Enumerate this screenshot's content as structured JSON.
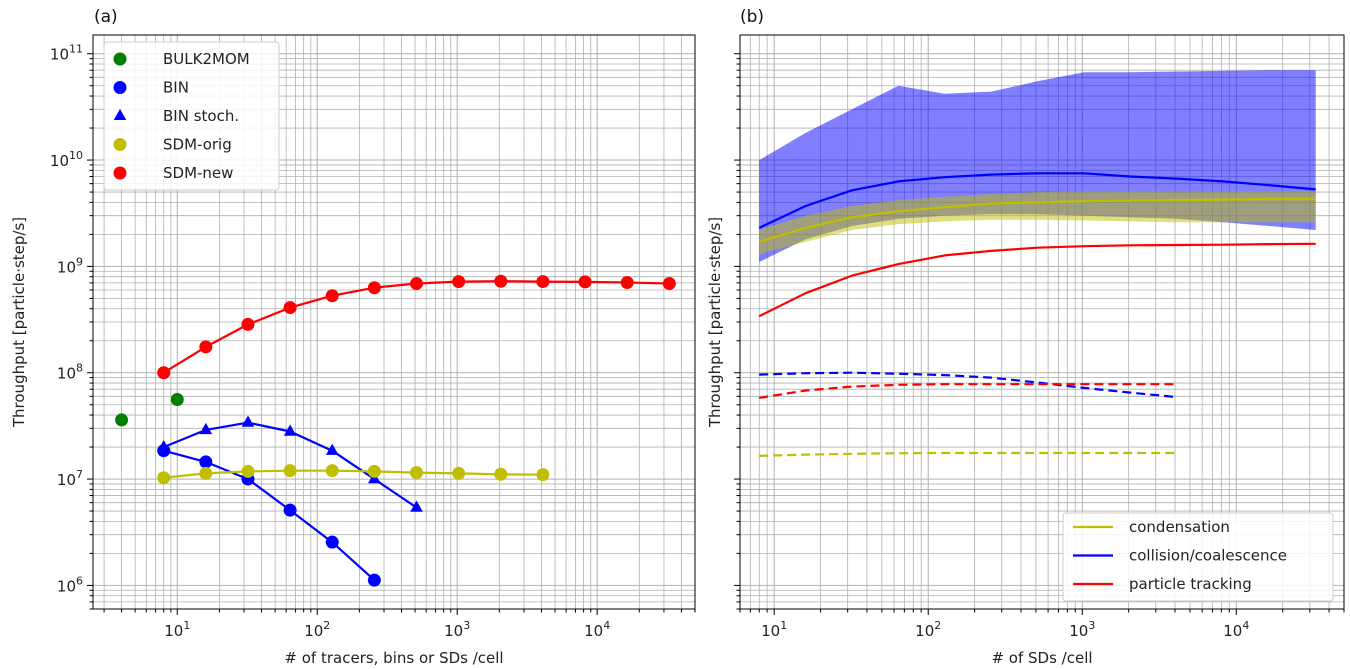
{
  "chart_data": [
    {
      "panel_label": "(a)",
      "type": "line",
      "xscale": "log",
      "yscale": "log",
      "xlim": [
        2.5,
        50000
      ],
      "ylim": [
        600000,
        150000000000
      ],
      "grid": "major and minor",
      "xlabel": "# of tracers, bins or SDs /cell",
      "ylabel": "Throughput [particle·step/s]",
      "x_ticks": [
        {
          "v": 10,
          "b": "10",
          "e": "1"
        },
        {
          "v": 100,
          "b": "10",
          "e": "2"
        },
        {
          "v": 1000,
          "b": "10",
          "e": "3"
        },
        {
          "v": 10000,
          "b": "10",
          "e": "4"
        }
      ],
      "y_ticks": [
        {
          "v": 1000000,
          "b": "10",
          "e": "6"
        },
        {
          "v": 10000000,
          "b": "10",
          "e": "7"
        },
        {
          "v": 100000000,
          "b": "10",
          "e": "8"
        },
        {
          "v": 1000000000,
          "b": "10",
          "e": "9"
        },
        {
          "v": 10000000000,
          "b": "10",
          "e": "10"
        },
        {
          "v": 100000000000,
          "b": "10",
          "e": "11"
        }
      ],
      "legend_position": "top-left",
      "series": [
        {
          "name": "BULK2MOM",
          "color": "#008000",
          "marker": "circle",
          "line": false,
          "x": [
            4,
            10
          ],
          "y": [
            36000000,
            56000000
          ]
        },
        {
          "name": "BIN",
          "color": "#0000ff",
          "marker": "circle",
          "line": true,
          "x": [
            8,
            16,
            32,
            64,
            128,
            256
          ],
          "y": [
            18500000,
            14500000,
            10000000,
            5100000,
            2550000,
            1120000
          ]
        },
        {
          "name": "BIN stoch.",
          "color": "#0000ff",
          "marker": "triangle",
          "line": true,
          "x": [
            8,
            16,
            32,
            64,
            128,
            256,
            512
          ],
          "y": [
            20000000,
            29000000,
            34000000,
            28000000,
            18500000,
            10000000,
            5400000
          ]
        },
        {
          "name": "SDM-orig",
          "color": "#bfbf00",
          "marker": "circle",
          "line": true,
          "x": [
            8,
            16,
            32,
            64,
            128,
            256,
            512,
            1024,
            2048,
            4096
          ],
          "y": [
            10300000,
            11300000,
            11800000,
            12000000,
            12000000,
            11800000,
            11500000,
            11300000,
            11100000,
            11000000
          ]
        },
        {
          "name": "SDM-new",
          "color": "#ff0000",
          "marker": "circle",
          "line": true,
          "x": [
            8,
            16,
            32,
            64,
            128,
            256,
            512,
            1024,
            2048,
            4096,
            8192,
            16384,
            32768
          ],
          "y": [
            100000000,
            175000000,
            285000000,
            410000000,
            530000000,
            630000000,
            690000000,
            720000000,
            725000000,
            720000000,
            715000000,
            705000000,
            690000000
          ]
        }
      ]
    },
    {
      "panel_label": "(b)",
      "type": "line",
      "xscale": "log",
      "yscale": "log",
      "xlim": [
        6,
        50000
      ],
      "ylim": [
        600000,
        150000000000
      ],
      "grid": "major and minor",
      "xlabel": "# of SDs /cell",
      "ylabel": "Throughput [particle·step/s]",
      "x_ticks": [
        {
          "v": 10,
          "b": "10",
          "e": "1"
        },
        {
          "v": 100,
          "b": "10",
          "e": "2"
        },
        {
          "v": 1000,
          "b": "10",
          "e": "3"
        },
        {
          "v": 10000,
          "b": "10",
          "e": "4"
        }
      ],
      "legend_position": "bottom-right",
      "legend": [
        {
          "name": "condensation",
          "color": "#bfbf00"
        },
        {
          "name": "collision/coalescence",
          "color": "#0000ff"
        },
        {
          "name": "particle tracking",
          "color": "#ff0000"
        }
      ],
      "bands": [
        {
          "color": "#0000ff",
          "x": [
            8,
            16,
            32,
            64,
            128,
            256,
            512,
            1024,
            2048,
            4096,
            8192,
            16384,
            32768
          ],
          "lower": [
            1100000000,
            1800000000,
            2400000000,
            2800000000,
            3000000000,
            3100000000,
            3100000000,
            3000000000,
            2900000000,
            2800000000,
            2600000000,
            2400000000,
            2200000000
          ],
          "upper": [
            10000000000,
            18000000000,
            30000000000,
            50000000000,
            42000000000,
            44000000000,
            55000000000,
            67000000000,
            67000000000,
            68000000000,
            69000000000,
            70000000000,
            70000000000
          ]
        },
        {
          "color": "#bfbf00",
          "x": [
            8,
            16,
            32,
            64,
            128,
            256,
            512,
            1024,
            2048,
            4096,
            8192,
            16384,
            32768
          ],
          "lower": [
            1300000000,
            1700000000,
            2200000000,
            2500000000,
            2650000000,
            2750000000,
            2750000000,
            2700000000,
            2650000000,
            2600000000,
            2600000000,
            2600000000,
            2600000000
          ],
          "upper": [
            2200000000,
            3000000000,
            3700000000,
            4200000000,
            4500000000,
            4800000000,
            5000000000,
            5100000000,
            5100000000,
            5100000000,
            5100000000,
            5100000000,
            5100000000
          ]
        }
      ],
      "series": [
        {
          "color": "#0000ff",
          "style": "solid",
          "x": [
            8,
            16,
            32,
            64,
            128,
            256,
            512,
            1024,
            2048,
            4096,
            8192,
            16384,
            32768
          ],
          "y": [
            2300000000,
            3700000000,
            5200000000,
            6300000000,
            6900000000,
            7300000000,
            7500000000,
            7500000000,
            7000000000,
            6700000000,
            6300000000,
            5800000000,
            5300000000
          ]
        },
        {
          "color": "#bfbf00",
          "style": "solid",
          "x": [
            8,
            16,
            32,
            64,
            128,
            256,
            512,
            1024,
            2048,
            4096,
            8192,
            16384,
            32768
          ],
          "y": [
            1700000000,
            2300000000,
            2900000000,
            3300000000,
            3600000000,
            3900000000,
            4000000000,
            4100000000,
            4150000000,
            4200000000,
            4250000000,
            4300000000,
            4300000000
          ]
        },
        {
          "color": "#ff0000",
          "style": "solid",
          "x": [
            8,
            16,
            32,
            64,
            128,
            256,
            512,
            1024,
            2048,
            4096,
            8192,
            16384,
            32768
          ],
          "y": [
            340000000,
            560000000,
            820000000,
            1050000000,
            1270000000,
            1400000000,
            1500000000,
            1550000000,
            1580000000,
            1590000000,
            1600000000,
            1620000000,
            1630000000
          ]
        },
        {
          "color": "#0000ff",
          "style": "dashed",
          "x": [
            8,
            16,
            32,
            64,
            128,
            256,
            512,
            1024,
            2048,
            4096
          ],
          "y": [
            96000000,
            99000000,
            100000000,
            98000000,
            95000000,
            90000000,
            81000000,
            72000000,
            65000000,
            59000000
          ]
        },
        {
          "color": "#ff0000",
          "style": "dashed",
          "x": [
            8,
            16,
            32,
            64,
            128,
            256,
            512,
            1024,
            2048,
            4096
          ],
          "y": [
            58000000,
            68000000,
            74000000,
            77000000,
            78000000,
            78000000,
            78000000,
            78000000,
            78000000,
            78000000
          ]
        },
        {
          "color": "#bfbf00",
          "style": "dashed",
          "x": [
            8,
            16,
            32,
            64,
            128,
            256,
            512,
            1024,
            2048,
            4096
          ],
          "y": [
            16500000,
            17000000,
            17300000,
            17500000,
            17600000,
            17600000,
            17600000,
            17600000,
            17600000,
            17600000
          ]
        }
      ]
    }
  ]
}
